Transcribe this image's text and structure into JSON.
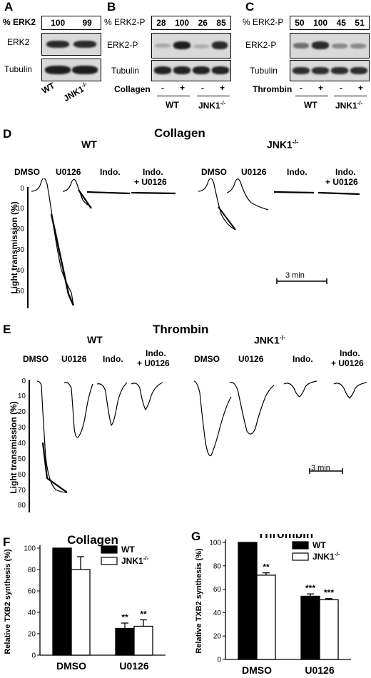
{
  "panelA": {
    "label": "A",
    "header": "% ERK2",
    "values": [
      "100",
      "99"
    ],
    "rows": [
      "ERK2",
      "Tubulin"
    ],
    "lanes": [
      "WT",
      "JNK1"
    ],
    "ko_sup": "-/-"
  },
  "panelB": {
    "label": "B",
    "header": "% ERK2-P",
    "values": [
      "28",
      "100",
      "26",
      "85"
    ],
    "rows": [
      "ERK2-P",
      "Tubulin"
    ],
    "treatment": "Collagen",
    "signs": [
      "-",
      "+",
      "-",
      "+"
    ],
    "groups": [
      "WT",
      "JNK1"
    ],
    "ko_sup": "-/-"
  },
  "panelC": {
    "label": "C",
    "header": "% ERK2-P",
    "values": [
      "50",
      "100",
      "45",
      "51"
    ],
    "rows": [
      "ERK2-P",
      "Tubulin"
    ],
    "treatment": "Thrombin",
    "signs": [
      "-",
      "+",
      "-",
      "+"
    ],
    "groups": [
      "WT",
      "JNK1"
    ],
    "ko_sup": "-/-"
  },
  "panelD": {
    "label": "D",
    "title": "Collagen",
    "wt": "WT",
    "ko": "JNK1",
    "ko_sup": "-/-",
    "conditions": [
      "DMSO",
      "U0126",
      "Indo.",
      "Indo.",
      "+ U0126"
    ],
    "ylabel": "Light transmission (%)",
    "yticks": [
      "0",
      "10",
      "20",
      "30",
      "40",
      "50"
    ],
    "scale": "3 min"
  },
  "panelE": {
    "label": "E",
    "title": "Thrombin",
    "wt": "WT",
    "ko": "JNK1",
    "ko_sup": "-/-",
    "conditions": [
      "DMSO",
      "U0126",
      "Indo.",
      "Indo.",
      "+ U0126"
    ],
    "ylabel": "Light transmission (%)",
    "yticks": [
      "0",
      "10",
      "20",
      "30",
      "40",
      "50",
      "60",
      "70",
      "80"
    ],
    "scale": "3 min"
  },
  "chart_data": [
    {
      "panel": "F",
      "type": "bar",
      "title": "Collagen",
      "categories": [
        "DMSO",
        "U0126"
      ],
      "ylabel": "Relative TXB2 synthesis (%)",
      "ylim": [
        0,
        100
      ],
      "yticks": [
        0,
        20,
        40,
        60,
        80,
        100
      ],
      "series": [
        {
          "name": "WT",
          "color": "#000000",
          "values": [
            100,
            25
          ],
          "errors": [
            0,
            5
          ],
          "annotations": [
            "",
            "**"
          ]
        },
        {
          "name": "JNK1-/-",
          "color": "#ffffff",
          "values": [
            80,
            27
          ],
          "errors": [
            12,
            6
          ],
          "annotations": [
            "",
            "**"
          ]
        }
      ],
      "legend": "top-right"
    },
    {
      "panel": "G",
      "type": "bar",
      "title": "Thrombin",
      "categories": [
        "DMSO",
        "U0126"
      ],
      "ylabel": "Relative TXB2 synthesis (%)",
      "ylim": [
        0,
        100
      ],
      "yticks": [
        0,
        20,
        40,
        60,
        80,
        100
      ],
      "series": [
        {
          "name": "WT",
          "color": "#000000",
          "values": [
            100,
            54
          ],
          "errors": [
            0,
            2
          ],
          "annotations": [
            "",
            "***"
          ]
        },
        {
          "name": "JNK1-/-",
          "color": "#ffffff",
          "values": [
            72,
            51
          ],
          "errors": [
            2,
            1
          ],
          "annotations": [
            "**",
            "***"
          ]
        }
      ],
      "legend": "top-right"
    }
  ]
}
